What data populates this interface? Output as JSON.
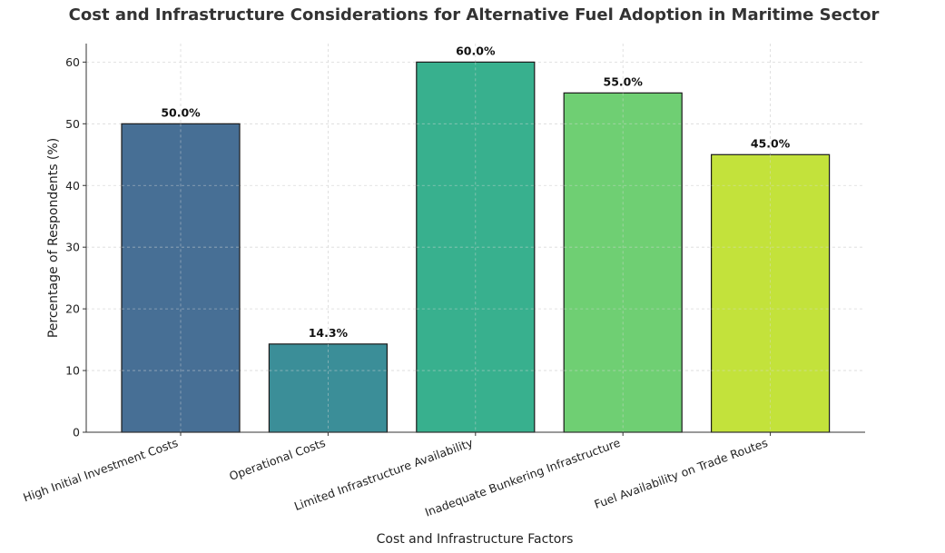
{
  "chart_data": {
    "type": "bar",
    "title": "Cost and Infrastructure Considerations for Alternative Fuel Adoption in Maritime Sector",
    "xlabel": "Cost and Infrastructure Factors",
    "ylabel": "Percentage of Respondents (%)",
    "categories": [
      "High Initial Investment Costs",
      "Operational Costs",
      "Limited Infrastructure Availability",
      "Inadequate Bunkering Infrastructure",
      "Fuel Availability on Trade Routes"
    ],
    "values": [
      50.0,
      14.3,
      60.0,
      55.0,
      45.0
    ],
    "value_labels": [
      "50.0%",
      "14.3%",
      "60.0%",
      "55.0%",
      "45.0%"
    ],
    "colors": [
      "#476f95",
      "#3b8e98",
      "#38b08e",
      "#6fcf73",
      "#c3e23b"
    ],
    "yticks": [
      0,
      10,
      20,
      30,
      40,
      50,
      60
    ],
    "ylim": [
      0,
      63
    ],
    "grid": true
  }
}
